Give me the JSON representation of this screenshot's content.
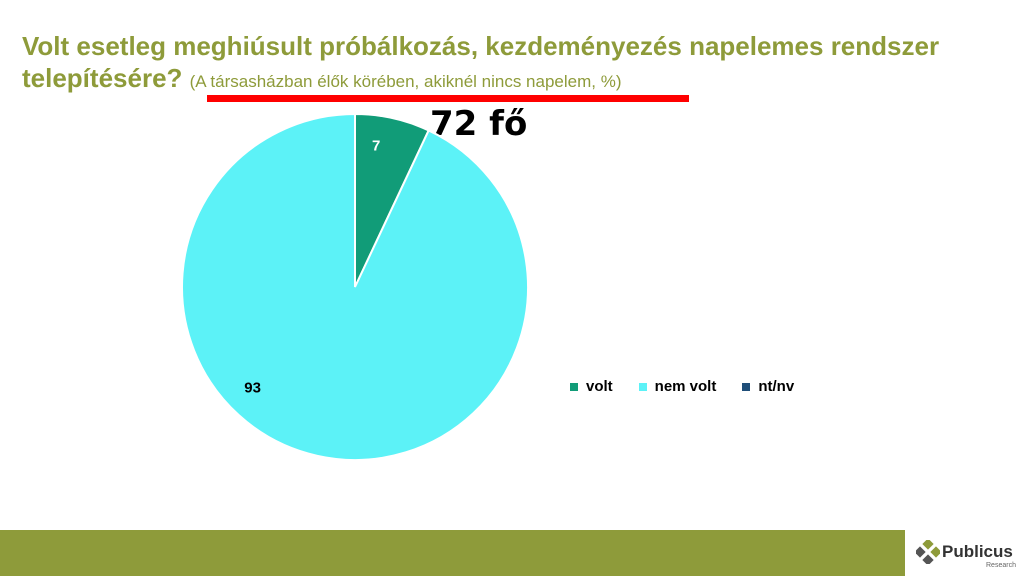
{
  "title": {
    "main": "Volt esetleg meghiúsult próbálkozás, kezdeményezés napelemes rendszer telepítésére?",
    "sub": "(A társasházban élők körében, akiknél nincs napelem, %)"
  },
  "annotation": "72 fő",
  "brand": {
    "name": "Publicus",
    "sub": "Research"
  },
  "colors": {
    "accent": "#8e9b3a",
    "highlight": "#ff0000"
  },
  "chart_data": {
    "type": "pie",
    "categories": [
      "volt",
      "nem volt",
      "nt/nv"
    ],
    "values": [
      7,
      93,
      0
    ],
    "colors": [
      "#119c78",
      "#5cf2f7",
      "#1f4e79"
    ],
    "data_labels": [
      "7",
      "93",
      ""
    ],
    "legend_position": "right"
  }
}
